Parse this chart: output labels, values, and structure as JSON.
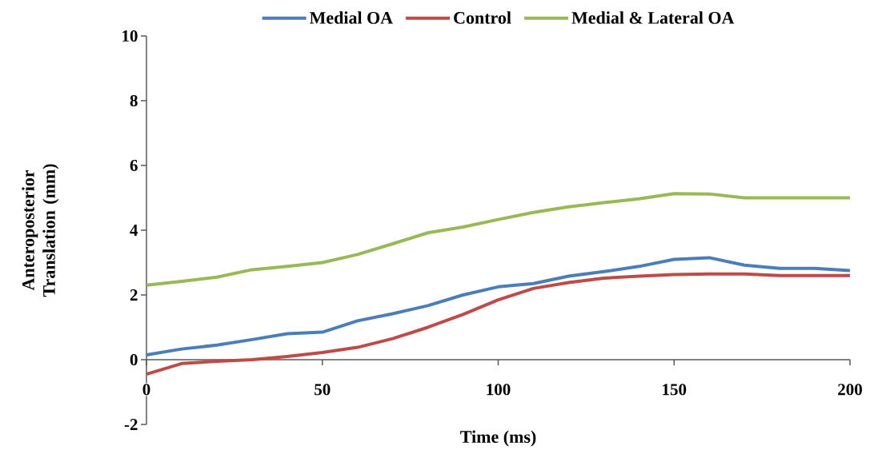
{
  "chart_data": {
    "type": "line",
    "xlabel": "Time (ms)",
    "ylabel": "Anteroposterior Translation (mm)",
    "x": [
      0,
      10,
      20,
      30,
      40,
      50,
      60,
      70,
      80,
      90,
      100,
      110,
      120,
      130,
      140,
      150,
      160,
      170,
      180,
      190,
      200
    ],
    "series": [
      {
        "name": "Medial OA",
        "color": "#4a7ebb",
        "values": [
          0.15,
          0.33,
          0.45,
          0.62,
          0.8,
          0.85,
          1.2,
          1.42,
          1.67,
          2.0,
          2.25,
          2.35,
          2.58,
          2.72,
          2.88,
          3.1,
          3.15,
          2.92,
          2.82,
          2.82,
          2.75
        ]
      },
      {
        "name": "Control",
        "color": "#be4b48",
        "values": [
          -0.45,
          -0.12,
          -0.05,
          0.0,
          0.1,
          0.22,
          0.38,
          0.65,
          1.0,
          1.4,
          1.85,
          2.2,
          2.38,
          2.52,
          2.58,
          2.63,
          2.65,
          2.65,
          2.6,
          2.6,
          2.6
        ]
      },
      {
        "name": "Medial & Lateral OA",
        "color": "#98b954",
        "values": [
          2.3,
          2.42,
          2.55,
          2.78,
          2.88,
          3.0,
          3.25,
          3.58,
          3.92,
          4.1,
          4.33,
          4.55,
          4.72,
          4.85,
          4.97,
          5.13,
          5.12,
          5.0,
          5.0,
          5.0,
          5.0
        ]
      }
    ],
    "xlim": [
      0,
      200
    ],
    "ylim": [
      -2,
      10
    ],
    "xticks": [
      0,
      50,
      100,
      150,
      200
    ],
    "yticks": [
      -2,
      0,
      2,
      4,
      6,
      8,
      10
    ],
    "grid": false,
    "legend": "top",
    "marker": "none",
    "line_style": "solid"
  }
}
